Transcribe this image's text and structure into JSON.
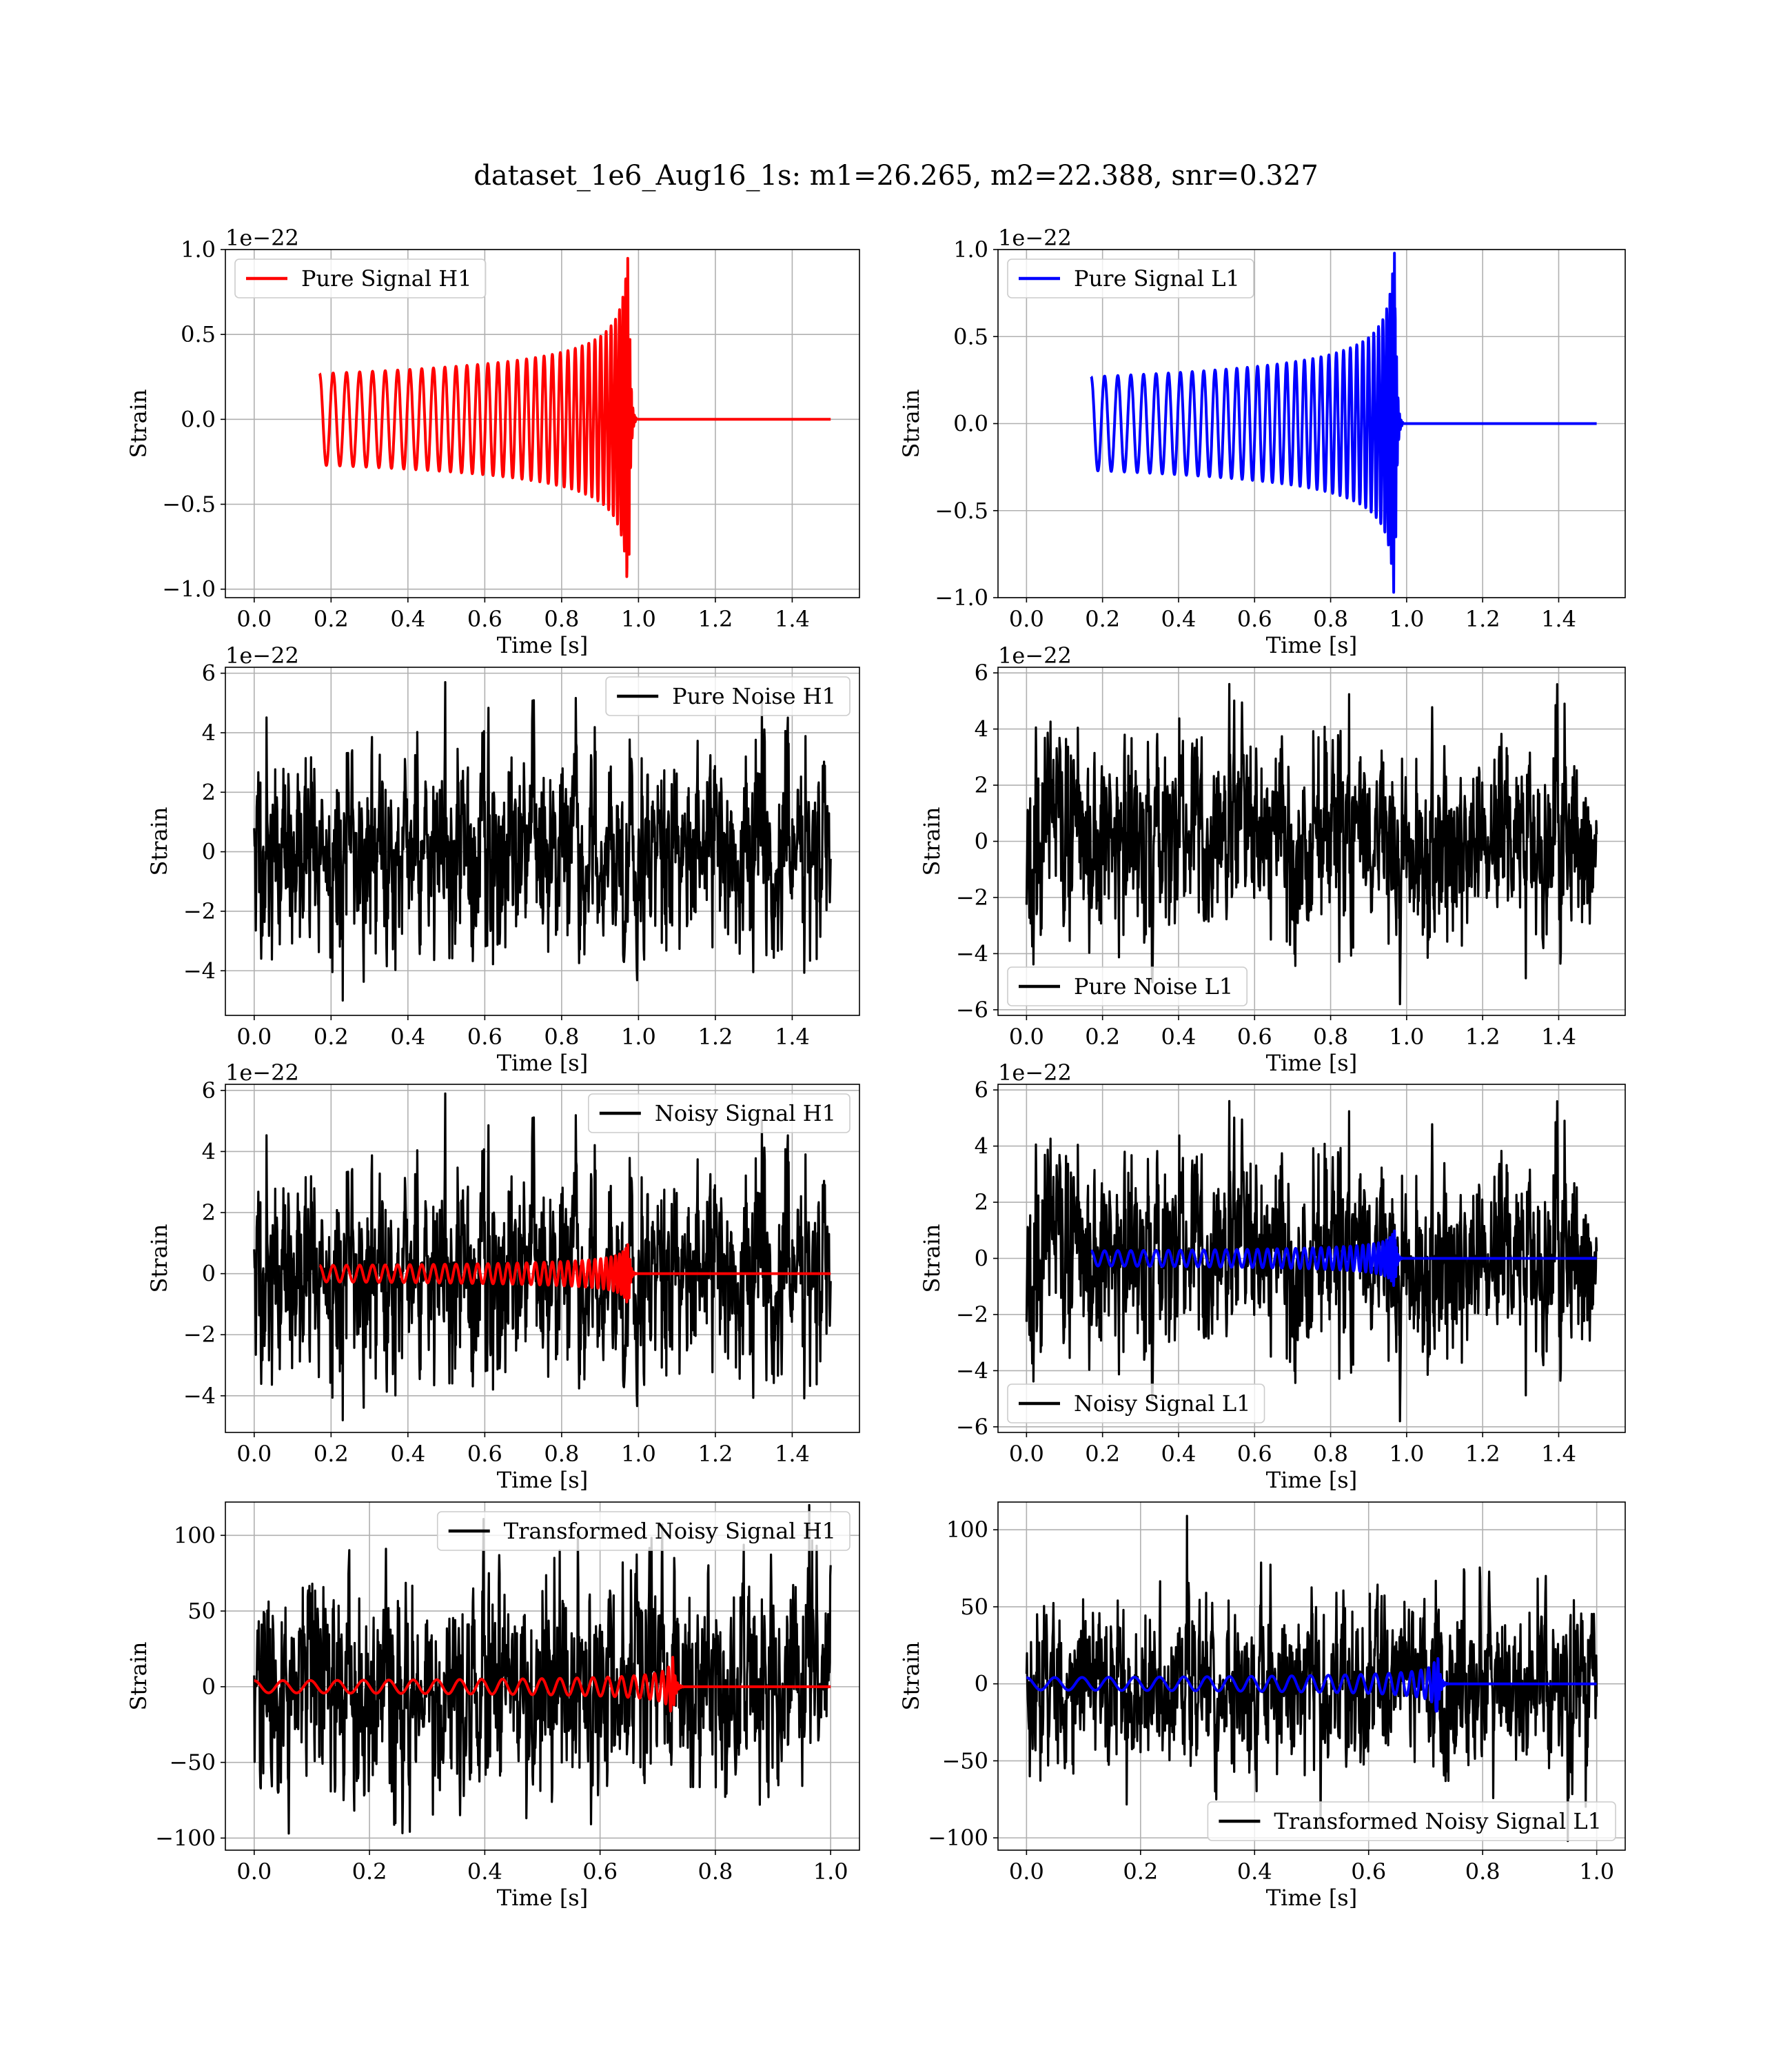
{
  "figure": {
    "title": "dataset_1e6_Aug16_1s: m1=26.265, m2=22.388, snr=0.327"
  },
  "chart_data": [
    {
      "type": "line",
      "legend": "Pure Signal H1",
      "legend_loc": "upper-left",
      "color": "#ff0000",
      "xlabel": "Time [s]",
      "ylabel": "Strain",
      "offset_text": "1e−22",
      "xlim": [
        -0.075,
        1.575
      ],
      "ylim": [
        -1.05,
        1.0
      ],
      "xticks": [
        "0.0",
        "0.2",
        "0.4",
        "0.6",
        "0.8",
        "1.0",
        "1.2",
        "1.4"
      ],
      "yticks": [
        "−1.0",
        "−0.5",
        "0.0",
        "0.5",
        "1.0"
      ],
      "grid": true,
      "series": [
        {
          "kind": "chirp",
          "t_start": 0.17,
          "t_merge": 0.975,
          "t_end": 1.5,
          "amp_start": 0.27,
          "amp_peak": 0.95,
          "freq_start": 28
        }
      ]
    },
    {
      "type": "line",
      "legend": "Pure Signal L1",
      "legend_loc": "upper-left",
      "color": "#0000ff",
      "xlabel": "Time [s]",
      "ylabel": "Strain",
      "offset_text": "1e−22",
      "xlim": [
        -0.075,
        1.575
      ],
      "ylim": [
        -1.0,
        1.0
      ],
      "xticks": [
        "0.0",
        "0.2",
        "0.4",
        "0.6",
        "0.8",
        "1.0",
        "1.2",
        "1.4"
      ],
      "yticks": [
        "−1.0",
        "−0.5",
        "0.0",
        "0.5",
        "1.0"
      ],
      "grid": true,
      "series": [
        {
          "kind": "chirp",
          "t_start": 0.17,
          "t_merge": 0.97,
          "t_end": 1.5,
          "amp_start": 0.27,
          "amp_peak": 0.98,
          "freq_start": 28
        }
      ]
    },
    {
      "type": "line",
      "legend": "Pure Noise H1",
      "legend_loc": "upper-right",
      "color": "#000000",
      "xlabel": "Time [s]",
      "ylabel": "Strain",
      "offset_text": "1e−22",
      "xlim": [
        -0.075,
        1.575
      ],
      "ylim": [
        -5.5,
        6.2
      ],
      "xticks": [
        "0.0",
        "0.2",
        "0.4",
        "0.6",
        "0.8",
        "1.0",
        "1.2",
        "1.4"
      ],
      "yticks": [
        "−4",
        "−2",
        "0",
        "2",
        "4",
        "6"
      ],
      "grid": true,
      "series": [
        {
          "kind": "noise",
          "t_start": 0.0,
          "t_end": 1.5,
          "max": 5.7,
          "min": -5.0,
          "seed": 11
        }
      ]
    },
    {
      "type": "line",
      "legend": "Pure Noise L1",
      "legend_loc": "lower-left",
      "color": "#000000",
      "xlabel": "Time [s]",
      "ylabel": "Strain",
      "offset_text": "1e−22",
      "xlim": [
        -0.075,
        1.575
      ],
      "ylim": [
        -6.2,
        6.2
      ],
      "xticks": [
        "0.0",
        "0.2",
        "0.4",
        "0.6",
        "0.8",
        "1.0",
        "1.2",
        "1.4"
      ],
      "yticks": [
        "−6",
        "−4",
        "−2",
        "0",
        "2",
        "4",
        "6"
      ],
      "grid": true,
      "series": [
        {
          "kind": "noise",
          "t_start": 0.0,
          "t_end": 1.5,
          "max": 5.6,
          "min": -5.8,
          "seed": 23
        }
      ]
    },
    {
      "type": "line",
      "legend": "Noisy Signal H1",
      "legend_loc": "upper-right",
      "color": "#000000",
      "xlabel": "Time [s]",
      "ylabel": "Strain",
      "offset_text": "1e−22",
      "xlim": [
        -0.075,
        1.575
      ],
      "ylim": [
        -5.2,
        6.2
      ],
      "xticks": [
        "0.0",
        "0.2",
        "0.4",
        "0.6",
        "0.8",
        "1.0",
        "1.2",
        "1.4"
      ],
      "yticks": [
        "−4",
        "−2",
        "0",
        "2",
        "4",
        "6"
      ],
      "grid": true,
      "series": [
        {
          "kind": "noise",
          "t_start": 0.0,
          "t_end": 1.5,
          "max": 5.9,
          "min": -4.8,
          "seed": 11
        },
        {
          "kind": "chirp",
          "color": "#ff0000",
          "t_start": 0.17,
          "t_merge": 0.975,
          "t_end": 1.5,
          "amp_start": 0.27,
          "amp_peak": 0.95,
          "freq_start": 28
        }
      ]
    },
    {
      "type": "line",
      "legend": "Noisy Signal L1",
      "legend_loc": "lower-left",
      "color": "#000000",
      "xlabel": "Time [s]",
      "ylabel": "Strain",
      "offset_text": "1e−22",
      "xlim": [
        -0.075,
        1.575
      ],
      "ylim": [
        -6.2,
        6.2
      ],
      "xticks": [
        "0.0",
        "0.2",
        "0.4",
        "0.6",
        "0.8",
        "1.0",
        "1.2",
        "1.4"
      ],
      "yticks": [
        "−6",
        "−4",
        "−2",
        "0",
        "2",
        "4",
        "6"
      ],
      "grid": true,
      "series": [
        {
          "kind": "noise",
          "t_start": 0.0,
          "t_end": 1.5,
          "max": 5.6,
          "min": -5.8,
          "seed": 23
        },
        {
          "kind": "chirp",
          "color": "#0000ff",
          "t_start": 0.17,
          "t_merge": 0.97,
          "t_end": 1.5,
          "amp_start": 0.27,
          "amp_peak": 0.98,
          "freq_start": 28
        }
      ]
    },
    {
      "type": "line",
      "legend": "Transformed Noisy Signal H1",
      "legend_loc": "upper-right",
      "color": "#000000",
      "xlabel": "Time [s]",
      "ylabel": "Strain",
      "offset_text": "",
      "xlim": [
        -0.05,
        1.05
      ],
      "ylim": [
        -108,
        122
      ],
      "xticks": [
        "0.0",
        "0.2",
        "0.4",
        "0.6",
        "0.8",
        "1.0"
      ],
      "yticks": [
        "−100",
        "−50",
        "0",
        "50",
        "100"
      ],
      "grid": true,
      "series": [
        {
          "kind": "noise",
          "t_start": 0.0,
          "t_end": 1.0,
          "max": 120,
          "min": -97,
          "seed": 37
        },
        {
          "kind": "chirp",
          "color": "#ff0000",
          "t_start": 0.0,
          "t_merge": 0.725,
          "t_end": 1.0,
          "amp_start": 4,
          "amp_peak": 26,
          "freq_start": 20
        }
      ]
    },
    {
      "type": "line",
      "legend": "Transformed Noisy Signal L1",
      "legend_loc": "lower-right",
      "color": "#000000",
      "xlabel": "Time [s]",
      "ylabel": "Strain",
      "offset_text": "",
      "xlim": [
        -0.05,
        1.05
      ],
      "ylim": [
        -108,
        118
      ],
      "xticks": [
        "0.0",
        "0.2",
        "0.4",
        "0.6",
        "0.8",
        "1.0"
      ],
      "yticks": [
        "−100",
        "−50",
        "0",
        "50",
        "100"
      ],
      "grid": true,
      "series": [
        {
          "kind": "noise",
          "t_start": 0.0,
          "t_end": 1.0,
          "max": 109,
          "min": -102,
          "seed": 53
        },
        {
          "kind": "chirp",
          "color": "#0000ff",
          "t_start": 0.0,
          "t_merge": 0.72,
          "t_end": 1.0,
          "amp_start": 4,
          "amp_peak": 26,
          "freq_start": 20
        }
      ]
    }
  ]
}
